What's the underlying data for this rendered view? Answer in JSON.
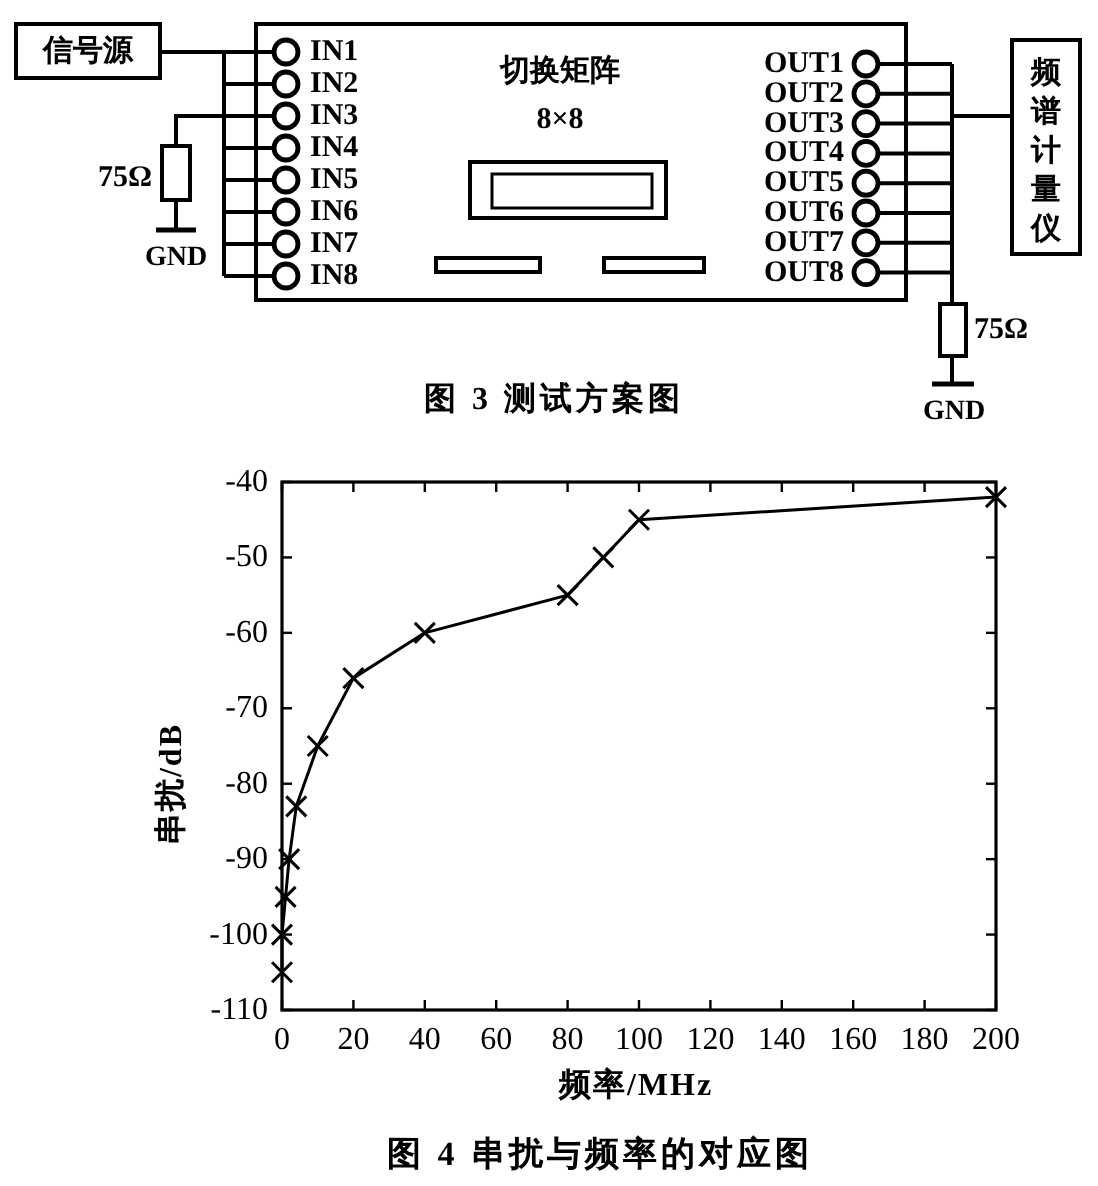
{
  "chart_data": [
    {
      "type": "other",
      "title": "图 3 测试方案图",
      "annotations": [
        "信号源",
        "IN1",
        "IN2",
        "IN3",
        "IN4",
        "IN5",
        "IN6",
        "IN7",
        "IN8",
        "切换矩阵",
        "8×8",
        "OUT1",
        "OUT2",
        "OUT3",
        "OUT4",
        "OUT5",
        "OUT6",
        "OUT7",
        "OUT8",
        "频谱计量仪",
        "75Ω",
        "GND",
        "75Ω",
        "GND"
      ]
    },
    {
      "type": "line",
      "title": "图 4 串扰与频率的对应图",
      "xlabel": "频率/MHz",
      "ylabel": "串扰/dB",
      "x": [
        0,
        0,
        1,
        2,
        4,
        10,
        20,
        40,
        80,
        90,
        100,
        200
      ],
      "series": [
        {
          "color": "#000000",
          "values": [
            -105,
            -100,
            -95,
            -90,
            -83,
            -75,
            -66,
            -60,
            -55,
            -50,
            -45,
            -42
          ]
        }
      ],
      "xlim": [
        0,
        200
      ],
      "ylim": [
        -110,
        -40
      ],
      "xticks": [
        0,
        20,
        40,
        60,
        80,
        100,
        120,
        140,
        160,
        180,
        200
      ],
      "yticks": [
        -110,
        -100,
        -90,
        -80,
        -70,
        -60,
        -50,
        -40
      ],
      "marker": "cross",
      "line_style": "solid"
    }
  ]
}
